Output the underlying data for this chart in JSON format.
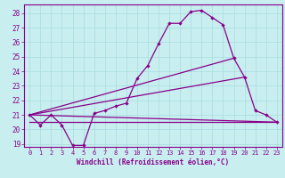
{
  "xlabel": "Windchill (Refroidissement éolien,°C)",
  "bg_color": "#c8eef0",
  "grid_color": "#a8dce0",
  "line_color": "#880088",
  "spine_color": "#880088",
  "xlim": [
    -0.5,
    23.5
  ],
  "ylim": [
    18.8,
    28.6
  ],
  "yticks": [
    19,
    20,
    21,
    22,
    23,
    24,
    25,
    26,
    27,
    28
  ],
  "xticks": [
    0,
    1,
    2,
    3,
    4,
    5,
    6,
    7,
    8,
    9,
    10,
    11,
    12,
    13,
    14,
    15,
    16,
    17,
    18,
    19,
    20,
    21,
    22,
    23
  ],
  "series1_x": [
    0,
    1,
    2,
    3,
    4,
    5,
    6,
    7,
    8,
    9,
    10,
    11,
    12,
    13,
    14,
    15,
    16,
    17,
    18,
    19,
    20,
    21,
    22,
    23
  ],
  "series1_y": [
    21.0,
    20.3,
    21.0,
    20.3,
    18.9,
    18.9,
    21.1,
    21.3,
    21.6,
    21.8,
    23.5,
    24.4,
    25.9,
    27.3,
    27.3,
    28.1,
    28.2,
    27.7,
    27.2,
    24.9,
    23.6,
    21.3,
    21.0,
    20.5
  ],
  "line1_x": [
    0,
    23
  ],
  "line1_y": [
    20.5,
    20.5
  ],
  "line2_x": [
    0,
    23
  ],
  "line2_y": [
    21.0,
    20.5
  ],
  "line3_x": [
    0,
    20
  ],
  "line3_y": [
    21.0,
    23.6
  ],
  "line4_x": [
    0,
    19
  ],
  "line4_y": [
    21.0,
    24.9
  ]
}
